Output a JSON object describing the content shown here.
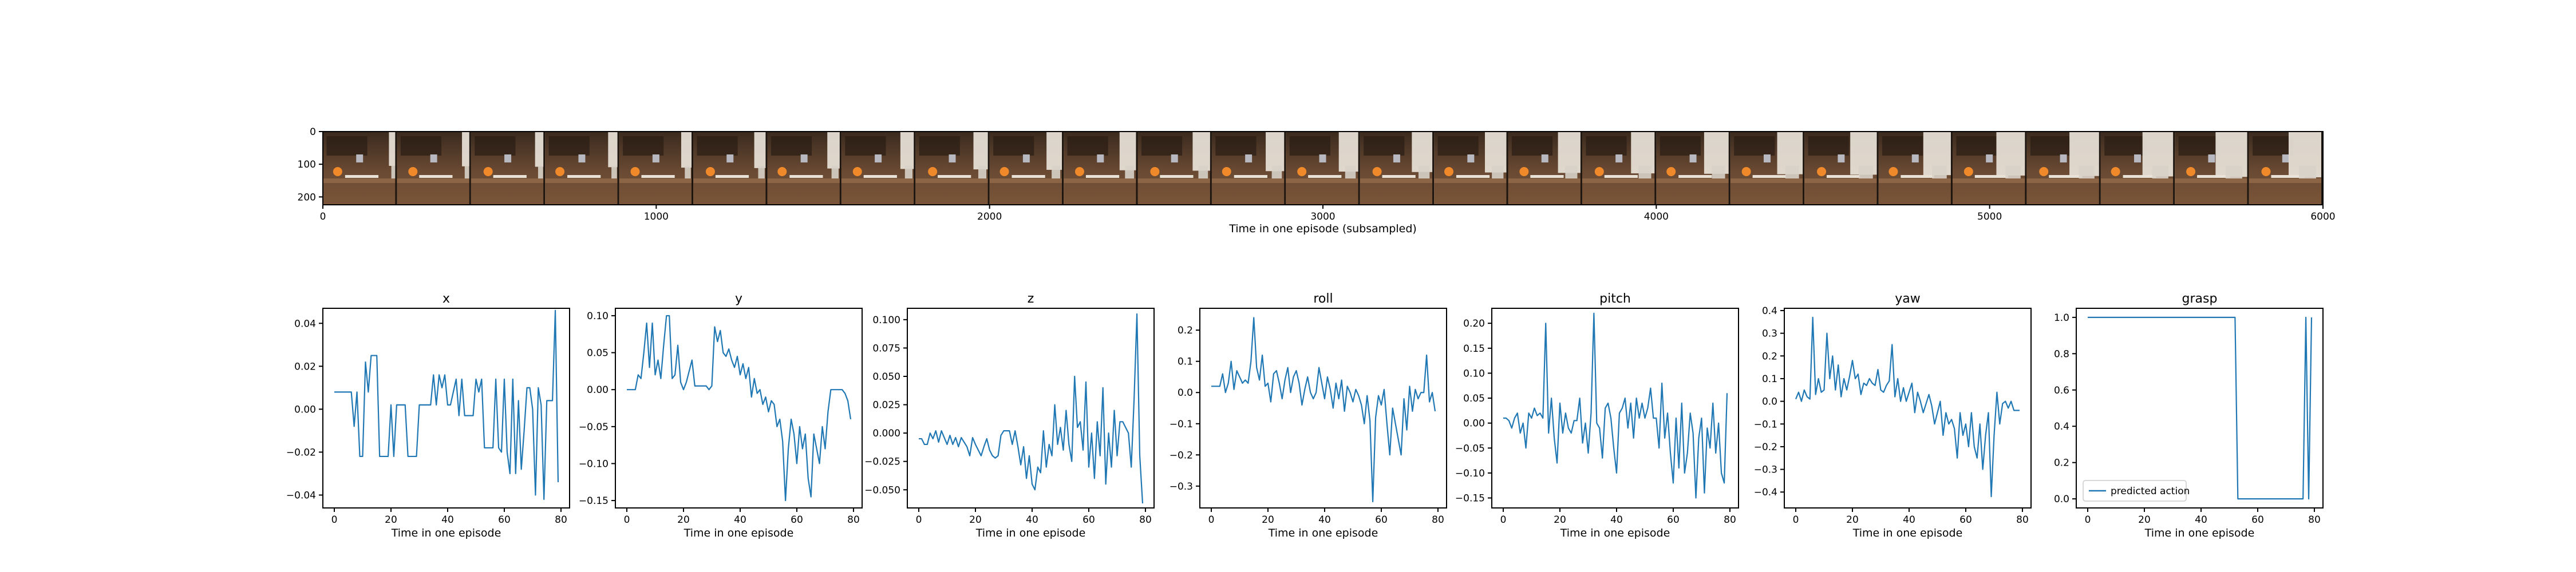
{
  "colors": {
    "line": "#1f77b4",
    "frame": "#000000"
  },
  "film_strip": {
    "xlabel": "Time in one episode (subsampled)",
    "x_ticks": [
      "0",
      "1000",
      "2000",
      "3000",
      "4000",
      "5000",
      "6000"
    ],
    "y_ticks": [
      "0",
      "100",
      "200"
    ],
    "frame_count": 27
  },
  "legend": {
    "label": "predicted action"
  },
  "chart_data": [
    {
      "type": "line",
      "title": "x",
      "xlabel": "Time in one episode",
      "ylabel": "",
      "xlim": [
        0,
        79
      ],
      "ylim": [
        -0.046,
        0.047
      ],
      "x_ticks": [
        0,
        20,
        40,
        60,
        80
      ],
      "y_ticks": [
        -0.04,
        -0.02,
        0.0,
        0.02,
        0.04
      ],
      "y_tick_labels": [
        "−0.04",
        "−0.02",
        "0.00",
        "0.02",
        "0.04"
      ],
      "series": [
        {
          "values": [
            0.008,
            0.008,
            0.008,
            0.008,
            0.008,
            0.008,
            0.008,
            -0.008,
            0.008,
            -0.022,
            -0.022,
            0.022,
            0.008,
            0.025,
            0.025,
            0.025,
            -0.022,
            -0.022,
            -0.022,
            -0.022,
            0.002,
            -0.022,
            0.002,
            0.002,
            0.002,
            0.002,
            -0.022,
            -0.022,
            -0.022,
            -0.022,
            0.002,
            0.002,
            0.002,
            0.002,
            0.002,
            0.016,
            0.002,
            0.016,
            0.01,
            0.016,
            0.002,
            0.002,
            0.008,
            0.014,
            -0.003,
            0.014,
            -0.003,
            -0.003,
            -0.003,
            -0.003,
            0.014,
            0.008,
            0.014,
            -0.018,
            -0.018,
            -0.018,
            -0.018,
            0.014,
            -0.018,
            -0.02,
            0.014,
            -0.02,
            -0.03,
            0.014,
            -0.03,
            0.004,
            -0.028,
            -0.01,
            0.01,
            0.01,
            0.0,
            -0.04,
            0.01,
            0.002,
            -0.042,
            0.004,
            0.004,
            0.004,
            0.046,
            -0.034
          ]
        }
      ]
    },
    {
      "type": "line",
      "title": "y",
      "xlabel": "Time in one episode",
      "ylabel": "",
      "xlim": [
        0,
        79
      ],
      "ylim": [
        -0.16,
        0.11
      ],
      "x_ticks": [
        0,
        20,
        40,
        60,
        80
      ],
      "y_ticks": [
        -0.15,
        -0.1,
        -0.05,
        0.0,
        0.05,
        0.1
      ],
      "y_tick_labels": [
        "−0.15",
        "−0.10",
        "−0.05",
        "0.00",
        "0.05",
        "0.10"
      ],
      "series": [
        {
          "values": [
            0.0,
            0.0,
            0.0,
            0.0,
            0.02,
            0.015,
            0.05,
            0.09,
            0.03,
            0.09,
            0.02,
            0.04,
            0.015,
            0.06,
            0.1,
            0.1,
            0.015,
            0.02,
            0.06,
            0.01,
            0.0,
            0.01,
            0.025,
            0.04,
            0.005,
            0.005,
            0.005,
            0.005,
            0.005,
            0.0,
            0.005,
            0.085,
            0.065,
            0.08,
            0.05,
            0.045,
            0.055,
            0.04,
            0.03,
            0.045,
            0.02,
            0.035,
            0.015,
            0.03,
            -0.01,
            0.015,
            -0.005,
            0.0,
            -0.02,
            -0.01,
            -0.03,
            -0.015,
            -0.02,
            -0.05,
            -0.04,
            -0.07,
            -0.15,
            -0.08,
            -0.04,
            -0.06,
            -0.1,
            -0.05,
            -0.08,
            -0.06,
            -0.12,
            -0.145,
            -0.06,
            -0.08,
            -0.1,
            -0.05,
            -0.08,
            -0.03,
            0.0,
            0.0,
            0.0,
            0.0,
            0.0,
            -0.005,
            -0.015,
            -0.04
          ]
        }
      ]
    },
    {
      "type": "line",
      "title": "z",
      "xlabel": "Time in one episode",
      "ylabel": "",
      "xlim": [
        0,
        79
      ],
      "ylim": [
        -0.066,
        0.11
      ],
      "x_ticks": [
        0,
        20,
        40,
        60,
        80
      ],
      "y_ticks": [
        -0.05,
        -0.025,
        0.0,
        0.025,
        0.05,
        0.075,
        0.1
      ],
      "y_tick_labels": [
        "−0.050",
        "−0.025",
        "0.000",
        "0.025",
        "0.050",
        "0.075",
        "0.100"
      ],
      "series": [
        {
          "values": [
            -0.005,
            -0.005,
            -0.01,
            -0.01,
            0.0,
            -0.005,
            0.002,
            -0.008,
            0.002,
            -0.004,
            -0.01,
            -0.002,
            -0.01,
            -0.004,
            -0.012,
            -0.004,
            -0.008,
            -0.012,
            -0.02,
            -0.004,
            -0.01,
            -0.015,
            -0.02,
            -0.012,
            -0.005,
            -0.015,
            -0.02,
            -0.022,
            -0.02,
            -0.002,
            0.002,
            0.002,
            0.002,
            -0.01,
            0.002,
            -0.012,
            -0.028,
            -0.012,
            -0.04,
            -0.02,
            -0.045,
            -0.05,
            -0.03,
            -0.035,
            0.002,
            -0.03,
            -0.01,
            -0.02,
            0.025,
            -0.01,
            0.005,
            -0.015,
            0.02,
            -0.01,
            -0.025,
            0.05,
            0.005,
            0.01,
            -0.015,
            0.045,
            -0.03,
            0.0,
            -0.04,
            0.01,
            -0.02,
            0.04,
            -0.045,
            0.0,
            -0.03,
            0.02,
            -0.02,
            0.01,
            0.01,
            0.005,
            0.0,
            -0.03,
            0.03,
            0.105,
            -0.02,
            -0.062
          ]
        }
      ]
    },
    {
      "type": "line",
      "title": "roll",
      "xlabel": "Time in one episode",
      "ylabel": "",
      "xlim": [
        0,
        79
      ],
      "ylim": [
        -0.37,
        0.27
      ],
      "x_ticks": [
        0,
        20,
        40,
        60,
        80
      ],
      "y_ticks": [
        -0.3,
        -0.2,
        -0.1,
        0.0,
        0.1,
        0.2
      ],
      "y_tick_labels": [
        "−0.3",
        "−0.2",
        "−0.1",
        "0.0",
        "0.1",
        "0.2"
      ],
      "series": [
        {
          "values": [
            0.02,
            0.02,
            0.02,
            0.02,
            0.06,
            0.0,
            0.03,
            0.1,
            0.01,
            0.07,
            0.05,
            0.03,
            0.04,
            0.03,
            0.1,
            0.24,
            0.08,
            0.04,
            0.12,
            0.02,
            0.03,
            -0.03,
            0.06,
            0.07,
            0.03,
            -0.02,
            0.04,
            0.08,
            0.0,
            0.05,
            0.07,
            0.03,
            -0.04,
            0.01,
            0.05,
            0.0,
            -0.02,
            0.0,
            0.08,
            0.03,
            -0.02,
            0.05,
            0.01,
            -0.05,
            0.03,
            -0.02,
            0.04,
            -0.06,
            0.02,
            0.0,
            -0.03,
            0.01,
            -0.01,
            -0.04,
            -0.1,
            -0.01,
            -0.09,
            -0.35,
            -0.08,
            -0.01,
            -0.04,
            0.01,
            -0.1,
            -0.2,
            -0.05,
            -0.1,
            -0.15,
            -0.2,
            -0.02,
            -0.12,
            0.02,
            -0.06,
            0.01,
            -0.02,
            0.0,
            0.0,
            0.12,
            -0.03,
            0.0,
            -0.06
          ]
        }
      ]
    },
    {
      "type": "line",
      "title": "pitch",
      "xlabel": "Time in one episode",
      "ylabel": "",
      "xlim": [
        0,
        79
      ],
      "ylim": [
        -0.17,
        0.23
      ],
      "x_ticks": [
        0,
        20,
        40,
        60,
        80
      ],
      "y_ticks": [
        -0.15,
        -0.1,
        -0.05,
        0.0,
        0.05,
        0.1,
        0.15,
        0.2
      ],
      "y_tick_labels": [
        "−0.15",
        "−0.10",
        "−0.05",
        "0.00",
        "0.05",
        "0.10",
        "0.15",
        "0.20"
      ],
      "series": [
        {
          "values": [
            0.01,
            0.01,
            0.005,
            -0.01,
            0.01,
            0.02,
            -0.02,
            0.0,
            -0.05,
            0.02,
            0.01,
            0.03,
            0.015,
            0.02,
            0.01,
            0.2,
            -0.02,
            0.05,
            -0.03,
            -0.08,
            0.04,
            -0.02,
            0.02,
            -0.01,
            -0.02,
            0.005,
            0.005,
            0.05,
            -0.04,
            0.0,
            -0.06,
            0.02,
            0.22,
            0.0,
            -0.01,
            -0.07,
            0.03,
            0.04,
            0.01,
            -0.05,
            -0.1,
            0.02,
            0.03,
            0.05,
            -0.01,
            0.04,
            -0.03,
            0.05,
            0.01,
            0.04,
            0.01,
            0.03,
            0.07,
            0.01,
            0.01,
            -0.05,
            0.08,
            -0.03,
            0.02,
            -0.06,
            -0.12,
            0.01,
            -0.09,
            0.04,
            -0.1,
            -0.06,
            0.02,
            -0.02,
            -0.15,
            -0.03,
            0.01,
            -0.14,
            -0.01,
            -0.05,
            0.04,
            -0.06,
            0.0,
            -0.1,
            -0.12,
            0.06
          ]
        }
      ]
    },
    {
      "type": "line",
      "title": "yaw",
      "xlabel": "Time in one episode",
      "ylabel": "",
      "xlim": [
        0,
        79
      ],
      "ylim": [
        -0.47,
        0.41
      ],
      "x_ticks": [
        0,
        20,
        40,
        60,
        80
      ],
      "y_ticks": [
        -0.4,
        -0.3,
        -0.2,
        -0.1,
        0.0,
        0.1,
        0.2,
        0.3,
        0.4
      ],
      "y_tick_labels": [
        "−0.4",
        "−0.3",
        "−0.2",
        "−0.1",
        "0.0",
        "0.1",
        "0.2",
        "0.3",
        "0.4"
      ],
      "series": [
        {
          "values": [
            0.01,
            0.04,
            0.0,
            0.05,
            0.02,
            0.01,
            0.37,
            0.03,
            0.1,
            0.04,
            0.05,
            0.3,
            0.1,
            0.2,
            0.05,
            0.16,
            0.02,
            0.1,
            0.05,
            0.11,
            0.18,
            0.1,
            0.12,
            0.03,
            0.08,
            0.07,
            0.1,
            0.08,
            0.07,
            0.14,
            0.05,
            0.04,
            0.07,
            0.09,
            0.25,
            0.02,
            0.1,
            0.0,
            0.06,
            0.0,
            0.04,
            0.08,
            -0.05,
            0.04,
            0.0,
            -0.05,
            -0.01,
            0.03,
            -0.02,
            -0.1,
            -0.05,
            0.0,
            -0.15,
            -0.05,
            -0.1,
            -0.08,
            -0.12,
            -0.25,
            -0.05,
            -0.15,
            -0.1,
            -0.2,
            -0.05,
            -0.2,
            -0.25,
            -0.1,
            -0.3,
            -0.15,
            -0.05,
            -0.42,
            -0.15,
            0.04,
            -0.1,
            -0.01,
            0.0,
            -0.03,
            0.0,
            -0.04,
            -0.04,
            -0.04
          ]
        }
      ]
    },
    {
      "type": "line",
      "title": "grasp",
      "xlabel": "Time in one episode",
      "ylabel": "",
      "xlim": [
        0,
        79
      ],
      "ylim": [
        -0.05,
        1.05
      ],
      "x_ticks": [
        0,
        20,
        40,
        60,
        80
      ],
      "y_ticks": [
        0.0,
        0.2,
        0.4,
        0.6,
        0.8,
        1.0
      ],
      "y_tick_labels": [
        "0.0",
        "0.2",
        "0.4",
        "0.6",
        "0.8",
        "1.0"
      ],
      "legend": "bottom-left",
      "series": [
        {
          "name": "predicted action",
          "values": [
            1,
            1,
            1,
            1,
            1,
            1,
            1,
            1,
            1,
            1,
            1,
            1,
            1,
            1,
            1,
            1,
            1,
            1,
            1,
            1,
            1,
            1,
            1,
            1,
            1,
            1,
            1,
            1,
            1,
            1,
            1,
            1,
            1,
            1,
            1,
            1,
            1,
            1,
            1,
            1,
            1,
            1,
            1,
            1,
            1,
            1,
            1,
            1,
            1,
            1,
            1,
            1,
            1,
            0,
            0,
            0,
            0,
            0,
            0,
            0,
            0,
            0,
            0,
            0,
            0,
            0,
            0,
            0,
            0,
            0,
            0,
            0,
            0,
            0,
            0,
            0,
            0,
            1,
            0,
            1
          ]
        }
      ]
    }
  ]
}
